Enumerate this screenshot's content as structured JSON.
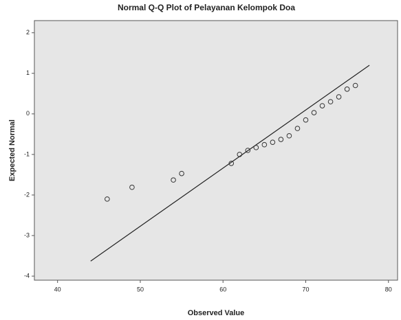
{
  "chart_data": {
    "type": "scatter",
    "title": "Normal Q-Q Plot of Pelayanan Kelompok Doa",
    "x_label": "Observed Value",
    "y_label": "Expected Normal",
    "series": [
      {
        "name": "Pelayanan Kelompok Doa",
        "color": "#333333",
        "x": [
          46,
          49,
          54,
          55,
          61,
          62,
          63,
          64,
          65,
          66,
          67,
          68,
          69,
          70,
          71,
          72,
          73,
          74,
          75,
          76
        ],
        "values": [
          -2.1,
          -1.81,
          -1.63,
          -1.47,
          -1.22,
          -1.0,
          -0.9,
          -0.83,
          -0.76,
          -0.7,
          -0.63,
          -0.54,
          -0.36,
          -0.15,
          0.03,
          0.2,
          0.3,
          0.42,
          0.61,
          0.7
        ]
      }
    ],
    "reference_line": {
      "color": "#222222",
      "x": [
        44,
        77.7
      ],
      "values": [
        -3.63,
        1.2
      ]
    },
    "xlim": [
      37.2,
      81.1
    ],
    "xticks": [
      40,
      50,
      60,
      70,
      80
    ],
    "ylim": [
      -4.1,
      2.3
    ],
    "yticks": [
      -4,
      -3,
      -2,
      -1,
      0,
      1,
      2
    ],
    "background": "#e6e6e6"
  }
}
